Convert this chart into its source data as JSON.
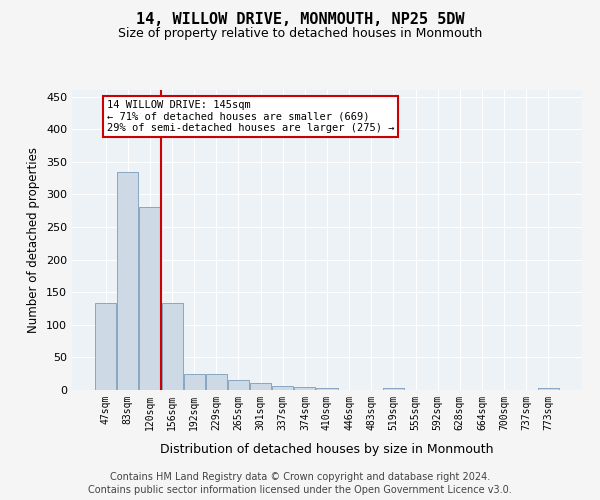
{
  "title": "14, WILLOW DRIVE, MONMOUTH, NP25 5DW",
  "subtitle": "Size of property relative to detached houses in Monmouth",
  "xlabel": "Distribution of detached houses by size in Monmouth",
  "ylabel": "Number of detached properties",
  "categories": [
    "47sqm",
    "83sqm",
    "120sqm",
    "156sqm",
    "192sqm",
    "229sqm",
    "265sqm",
    "301sqm",
    "337sqm",
    "374sqm",
    "410sqm",
    "446sqm",
    "483sqm",
    "519sqm",
    "555sqm",
    "592sqm",
    "628sqm",
    "664sqm",
    "700sqm",
    "737sqm",
    "773sqm"
  ],
  "values": [
    133,
    335,
    280,
    133,
    25,
    25,
    15,
    10,
    6,
    5,
    3,
    0,
    0,
    3,
    0,
    0,
    0,
    0,
    0,
    0,
    3
  ],
  "bar_color": "#cdd9e5",
  "bar_edge_color": "#7a9cbd",
  "vline_x": 2.5,
  "vline_color": "#cc0000",
  "annotation_text": "14 WILLOW DRIVE: 145sqm\n← 71% of detached houses are smaller (669)\n29% of semi-detached houses are larger (275) →",
  "annotation_box_color": "#ffffff",
  "annotation_box_edge": "#cc0000",
  "ylim": [
    0,
    460
  ],
  "yticks": [
    0,
    50,
    100,
    150,
    200,
    250,
    300,
    350,
    400,
    450
  ],
  "bg_color": "#edf2f7",
  "grid_color": "#ffffff",
  "footer_line1": "Contains HM Land Registry data © Crown copyright and database right 2024.",
  "footer_line2": "Contains public sector information licensed under the Open Government Licence v3.0."
}
